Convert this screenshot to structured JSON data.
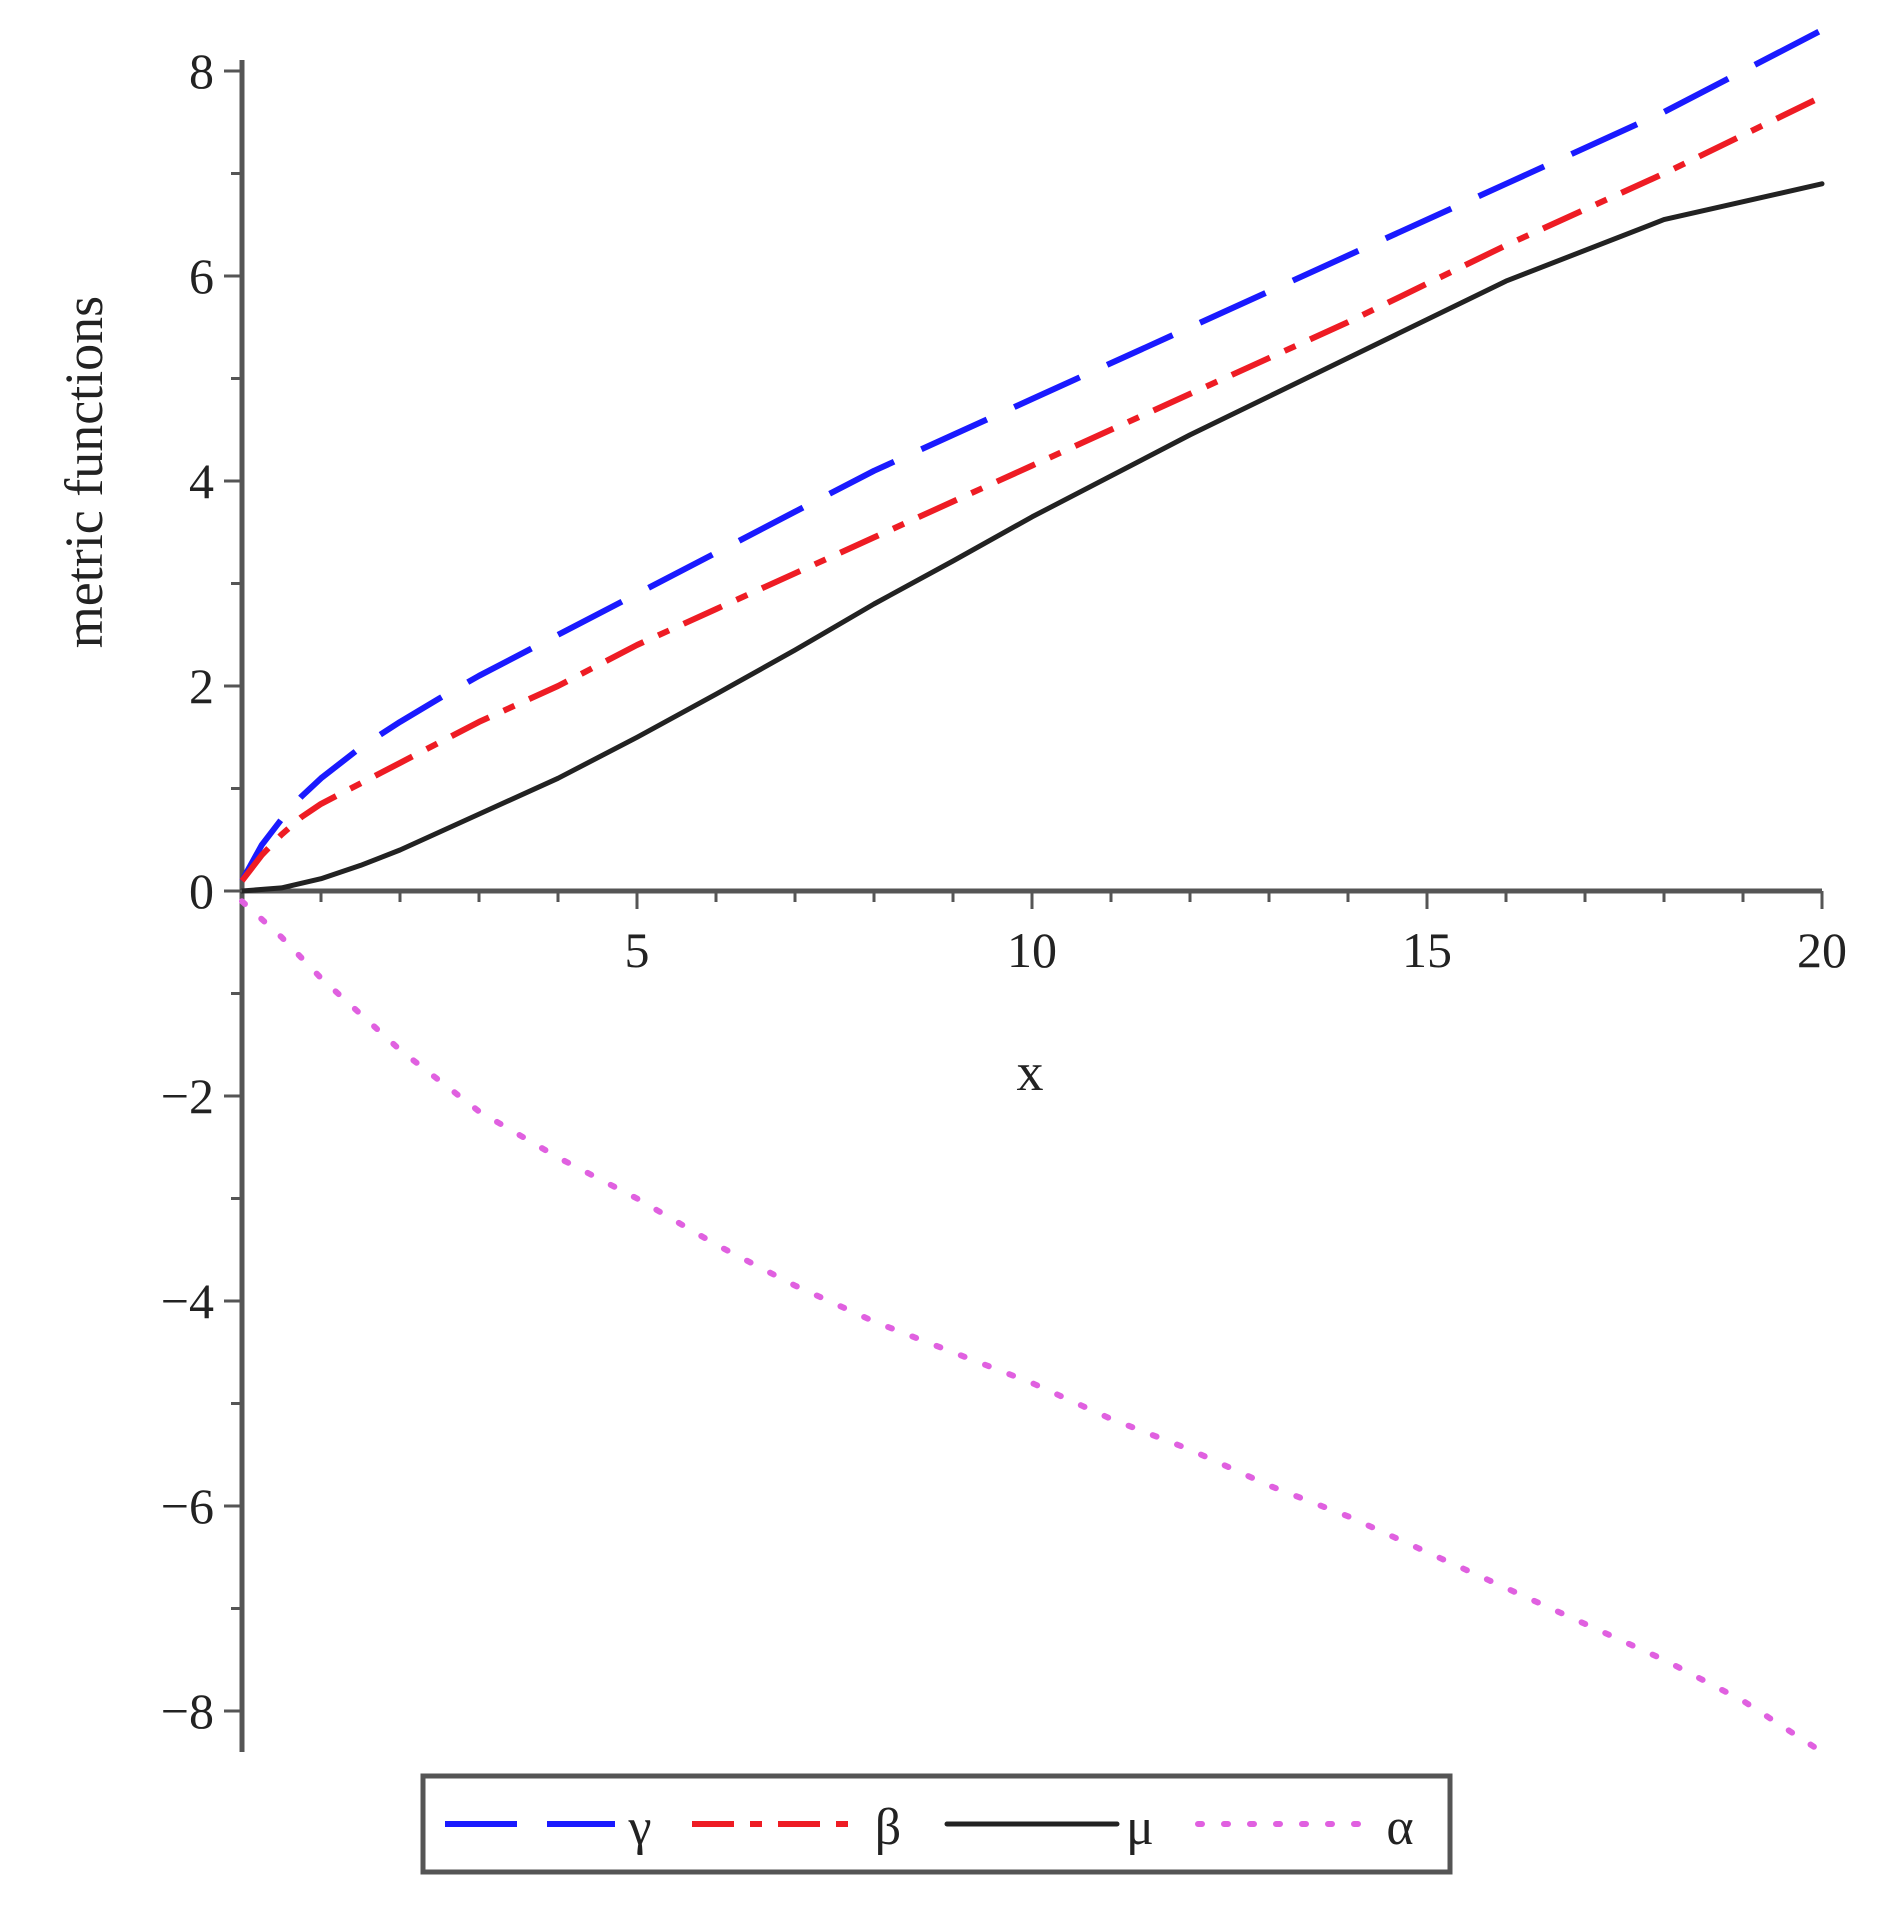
{
  "chart_data": {
    "type": "line",
    "xlabel": "x",
    "ylabel": "metric functions",
    "xlim": [
      0,
      20
    ],
    "ylim": [
      -8.4,
      8.4
    ],
    "x_ticks": [
      5,
      10,
      15,
      20
    ],
    "x_tick_labels": [
      "5",
      "10",
      "15",
      "20"
    ],
    "y_ticks": [
      -8,
      -6,
      -4,
      -2,
      0,
      2,
      4,
      6,
      8
    ],
    "y_tick_labels": [
      "−8",
      "−6",
      "−4",
      "−2",
      "0",
      "2",
      "4",
      "6",
      "8"
    ],
    "grid": false,
    "legend_position": "bottom",
    "series": [
      {
        "name": "γ",
        "color": "#1a1aff",
        "style": "long-dash",
        "x": [
          0,
          0.25,
          0.5,
          0.75,
          1,
          1.5,
          2,
          2.5,
          3,
          4,
          5,
          6,
          7,
          8,
          9,
          10,
          12,
          14,
          16,
          18,
          20
        ],
        "y": [
          0.1,
          0.45,
          0.7,
          0.92,
          1.1,
          1.4,
          1.65,
          1.88,
          2.1,
          2.5,
          2.9,
          3.3,
          3.7,
          4.1,
          4.45,
          4.8,
          5.5,
          6.2,
          6.9,
          7.6,
          8.4
        ]
      },
      {
        "name": "β",
        "color": "#ee1c24",
        "style": "dash-dot",
        "x": [
          0,
          0.25,
          0.5,
          0.75,
          1,
          1.5,
          2,
          2.5,
          3,
          4,
          5,
          6,
          7,
          8,
          9,
          10,
          12,
          14,
          16,
          18,
          20
        ],
        "y": [
          0.1,
          0.35,
          0.55,
          0.72,
          0.85,
          1.05,
          1.25,
          1.45,
          1.65,
          2.0,
          2.4,
          2.75,
          3.1,
          3.45,
          3.8,
          4.15,
          4.85,
          5.55,
          6.3,
          7.0,
          7.75
        ]
      },
      {
        "name": "μ",
        "color": "#222222",
        "style": "solid",
        "x": [
          0,
          0.5,
          1,
          1.5,
          2,
          3,
          4,
          5,
          6,
          7,
          8,
          9,
          10,
          12,
          14,
          16,
          18,
          20
        ],
        "y": [
          0,
          0.03,
          0.12,
          0.25,
          0.4,
          0.75,
          1.1,
          1.5,
          1.92,
          2.35,
          2.8,
          3.22,
          3.65,
          4.45,
          5.2,
          5.95,
          6.55,
          6.9
        ]
      },
      {
        "name": "α",
        "color": "#e060e0",
        "style": "dotted",
        "x": [
          0,
          0.5,
          1,
          2,
          3,
          4,
          5,
          6,
          7,
          8,
          9,
          10,
          11,
          12,
          13,
          14,
          15,
          16,
          17,
          18,
          19,
          20
        ],
        "y": [
          -0.1,
          -0.45,
          -0.85,
          -1.55,
          -2.15,
          -2.6,
          -3.0,
          -3.45,
          -3.85,
          -4.2,
          -4.5,
          -4.8,
          -5.15,
          -5.45,
          -5.8,
          -6.1,
          -6.45,
          -6.8,
          -7.15,
          -7.5,
          -7.9,
          -8.4
        ]
      }
    ]
  }
}
